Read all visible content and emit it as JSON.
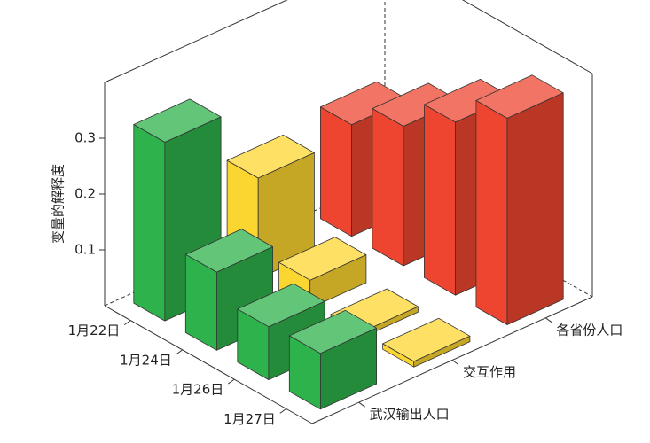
{
  "chart_data": {
    "type": "bar3d",
    "ylabel": "变量的解释度",
    "categories": [
      "1月22日",
      "1月24日",
      "1月26日",
      "1月27日"
    ],
    "series": [
      {
        "name": "武汉输出人口",
        "color": "#2eb24b",
        "values": [
          0.32,
          0.14,
          0.095,
          0.1
        ]
      },
      {
        "name": "交互作用",
        "color": "#fcd630",
        "values": [
          0.18,
          0.05,
          0.01,
          0.01
        ]
      },
      {
        "name": "各省份人口",
        "color": "#ee4530",
        "values": [
          0.2,
          0.25,
          0.31,
          0.37
        ]
      }
    ],
    "ylim": [
      0,
      0.4
    ],
    "yticks": [
      0.1,
      0.2,
      0.3
    ]
  }
}
